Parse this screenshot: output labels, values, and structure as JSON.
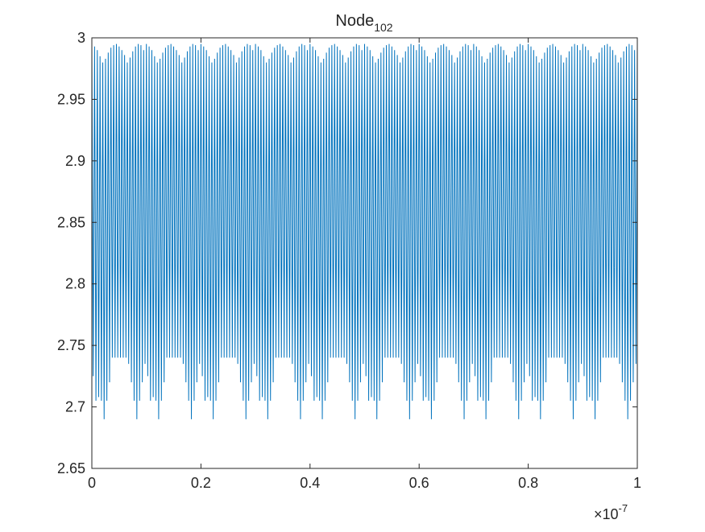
{
  "chart_data": {
    "type": "line",
    "title": "Node",
    "title_subscript": "102",
    "xlabel": "",
    "ylabel": "",
    "xlim": [
      0,
      1
    ],
    "ylim": [
      2.65,
      3.0
    ],
    "x_exponent": "×10",
    "x_exponent_power": "-7",
    "x_ticks": [
      0,
      0.2,
      0.4,
      0.6,
      0.8,
      1
    ],
    "x_tick_labels": [
      "0",
      "0.2",
      "0.4",
      "0.6",
      "0.8",
      "1"
    ],
    "y_ticks": [
      2.65,
      2.7,
      2.75,
      2.8,
      2.85,
      2.9,
      2.95,
      3.0
    ],
    "y_tick_labels": [
      "2.65",
      "2.7",
      "2.75",
      "2.8",
      "2.85",
      "2.9",
      "2.95",
      "3"
    ],
    "grid": false,
    "series": [
      {
        "name": "Node_102",
        "color": "#0072BD",
        "cycles": 200,
        "period_cycles": 20,
        "peaks": [
          2.995,
          2.993,
          2.99,
          2.985,
          2.98,
          2.983,
          2.988,
          2.992,
          2.994,
          2.995,
          2.993,
          2.99,
          2.986,
          2.98,
          2.984,
          2.989,
          2.993,
          2.995,
          2.994,
          2.99
        ],
        "troughs": [
          2.725,
          2.705,
          2.708,
          2.705,
          2.69,
          2.705,
          2.72,
          2.74,
          2.74,
          2.74,
          2.74,
          2.74,
          2.74,
          2.735,
          2.72,
          2.705,
          2.69,
          2.705,
          2.72,
          2.735
        ]
      }
    ]
  }
}
